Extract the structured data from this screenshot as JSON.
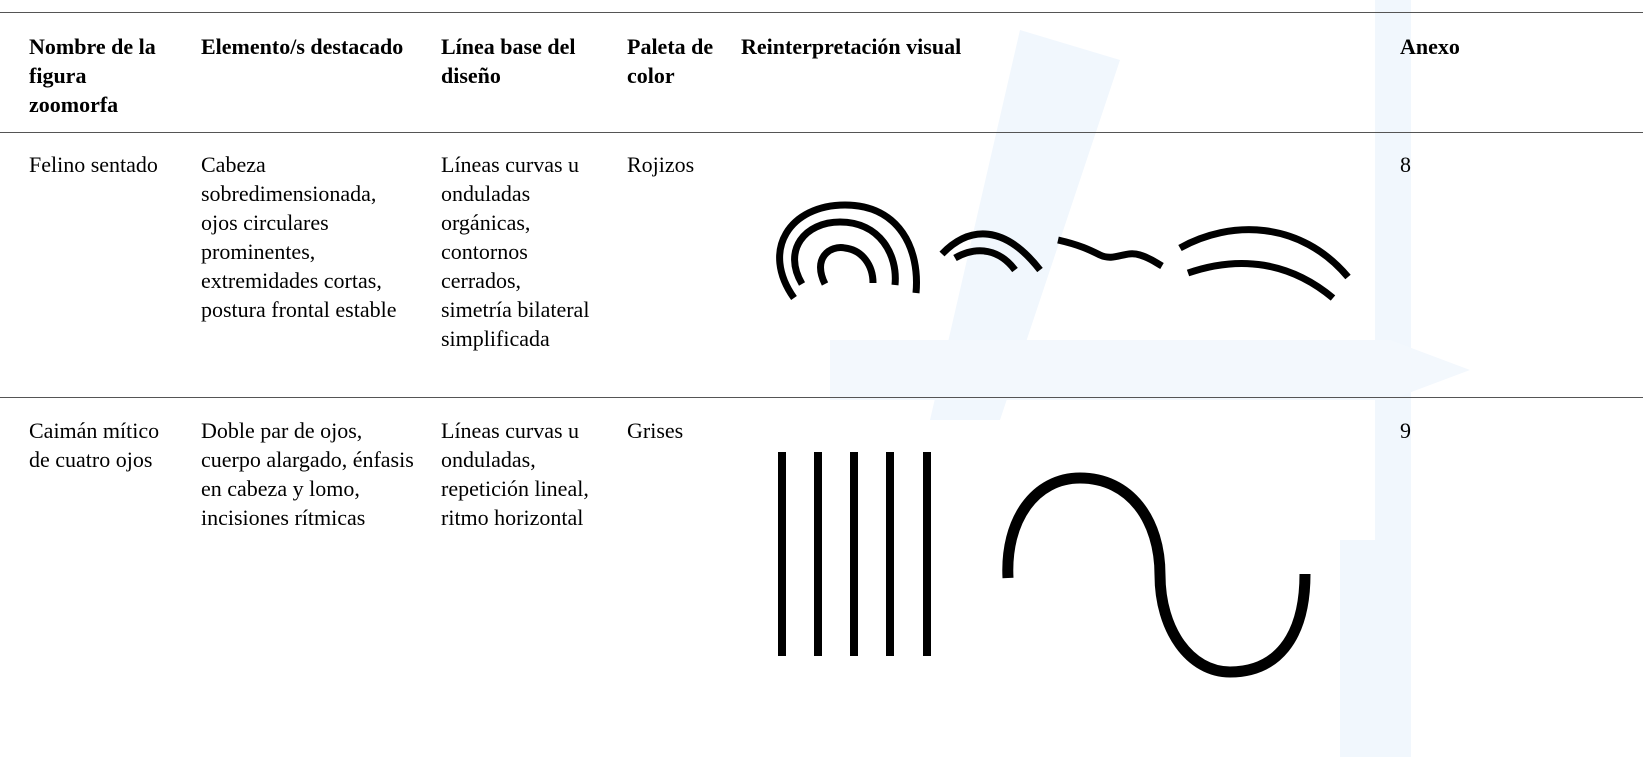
{
  "table": {
    "header": [
      "Nombre de la figura zoomorfa",
      "Elemento/s destacado",
      "Línea base del diseño",
      "Paleta de color",
      "Reinterpretación visual",
      "Anexo"
    ],
    "rows": [
      {
        "name": "Felino sentado",
        "elements": "Cabeza sobredimensionada, ojos circulares prominentes, extremidades cortas, postura frontal estable",
        "design": "Líneas curvas u onduladas orgánicas, contornos cerrados, simetría bilateral simplificada",
        "palette": "Rojizos",
        "annex": "8"
      },
      {
        "name": "Caimán mítico de cuatro ojos",
        "elements": "Doble par de ojos, cuerpo alargado, énfasis en cabeza y lomo, incisiones rítmicas",
        "design": "Líneas curvas u onduladas, repetición lineal, ritmo horizontal",
        "palette": "Grises",
        "annex": "9"
      }
    ]
  }
}
